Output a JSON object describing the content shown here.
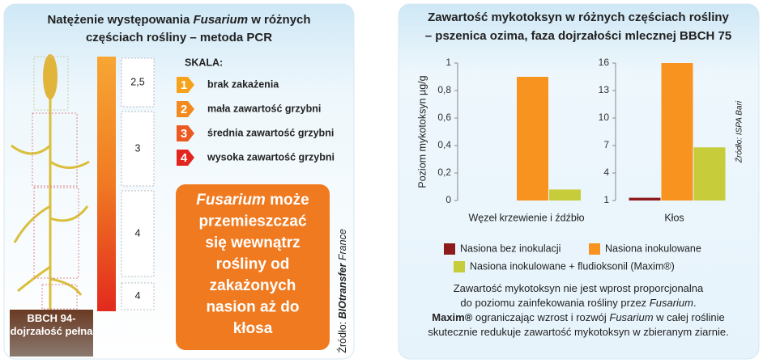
{
  "left": {
    "title": [
      [
        "Natężenie występowania ",
        "Fusarium",
        " w różnych"
      ],
      [
        "częściach rośliny – metoda PCR"
      ]
    ],
    "levels": [
      "2,5",
      "3",
      "4",
      "4"
    ],
    "scale_title": "SKALA:",
    "scale": [
      {
        "number": 1,
        "label": "brak zakażenia",
        "color": "#f7a21b"
      },
      {
        "number": 2,
        "label": "mała zawartość grzybni",
        "color": "#f38a1f"
      },
      {
        "number": 3,
        "label": "średnia zawartość grzybni",
        "color": "#ec5a22"
      },
      {
        "number": 4,
        "label": "wysoka zawartość grzybni",
        "color": "#e2261f"
      }
    ],
    "box_text": [
      [
        "Fusarium",
        " może"
      ],
      [
        "przemieszczać"
      ],
      [
        "się wewnątrz"
      ],
      [
        "rośliny od"
      ],
      [
        "zakażonych"
      ],
      [
        "nasion aż do"
      ],
      [
        "kłosa"
      ]
    ],
    "bbch_label": "BBCH 94- dojrzałość pełna",
    "source": [
      "Źródło: ",
      "BIOtransfer",
      " France"
    ]
  },
  "right": {
    "title": [
      "Zawartość mykotoksyn w różnych częściach rośliny",
      "– pszenica ozima, faza dojrzałości mlecznej BBCH 75"
    ],
    "source": "Źródło: ISPA Bari",
    "note": [
      [
        "Zawartość mykotoksyn nie jest wprost proporcjonalna"
      ],
      [
        "do poziomu zainfekowania rośliny przez ",
        "Fusarium",
        "."
      ],
      [
        "Maxim®",
        " ograniczając wzrost i rozwój ",
        "Fusarium",
        " w całej roślinie"
      ],
      [
        "skutecznie redukuje zawartość mykotoksyn w zbieranym ziarnie."
      ]
    ]
  },
  "chart_data": [
    {
      "type": "bar",
      "ylabel": "Poziom mykotoksyn µg/g",
      "categories": [
        "Węzeł krzewienie i źdźbło"
      ],
      "series": [
        {
          "name": "Nasiona bez inokulacji",
          "color": "#8e1b1b",
          "values": [
            0
          ]
        },
        {
          "name": "Nasiona inokulowane",
          "color": "#f7931e",
          "values": [
            0.9
          ]
        },
        {
          "name": "Nasiona inokulowane + fludioksonil (Maxim®)",
          "color": "#c6cc3a",
          "values": [
            0.08
          ]
        }
      ],
      "ylim": [
        0,
        1
      ],
      "yticks": [
        0,
        {
          "value": 0.2,
          "label": "0,2"
        },
        {
          "value": 0.4,
          "label": "0,4"
        },
        {
          "value": 0.6,
          "label": "0,6"
        },
        {
          "value": 0.8,
          "label": "0,8"
        },
        1
      ]
    },
    {
      "type": "bar",
      "categories": [
        "Kłos"
      ],
      "series": [
        {
          "color": "#8e1b1b",
          "values": [
            1.3
          ]
        },
        {
          "color": "#f7931e",
          "values": [
            16
          ]
        },
        {
          "color": "#c6cc3a",
          "values": [
            6.8
          ]
        }
      ],
      "ylim": [
        1,
        16
      ],
      "yticks": [
        1,
        4,
        7,
        10,
        13,
        16
      ]
    }
  ]
}
